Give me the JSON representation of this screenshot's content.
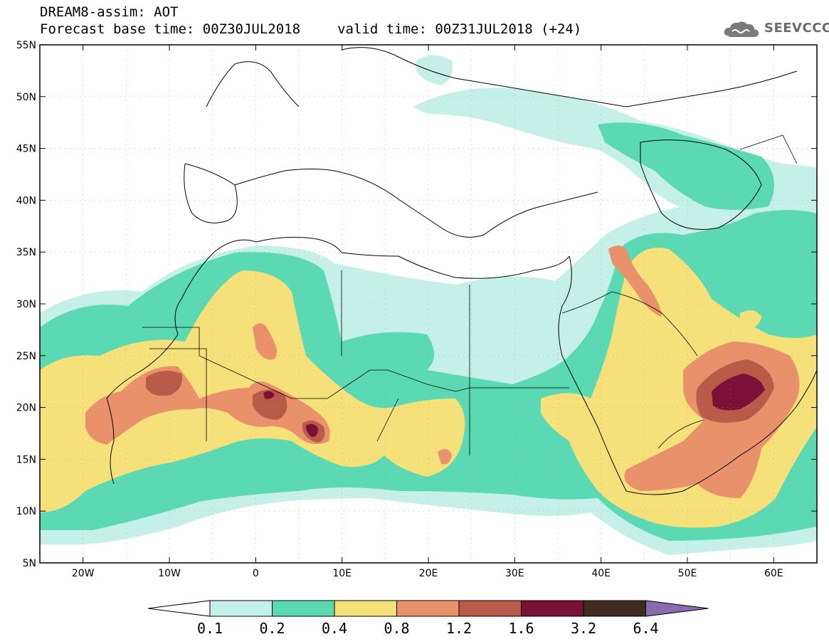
{
  "header": {
    "title": "DREAM8-assim: AOT",
    "base_label": "Forecast base time:",
    "base_time": "00Z30JUL2018",
    "valid_label": "valid time:",
    "valid_time": "00Z31JUL2018 (+24)"
  },
  "logo": {
    "text": "SEEVCCC",
    "icon": "cloud-icon"
  },
  "map": {
    "lon_range": [
      -25,
      65
    ],
    "lat_range": [
      5,
      55
    ],
    "lon_ticks": [
      "20W",
      "10W",
      "0",
      "10E",
      "20E",
      "30E",
      "40E",
      "50E",
      "60E"
    ],
    "lon_tick_values": [
      -20,
      -10,
      0,
      10,
      20,
      30,
      40,
      50,
      60
    ],
    "lat_ticks": [
      "55N",
      "50N",
      "45N",
      "40N",
      "35N",
      "30N",
      "25N",
      "20N",
      "15N",
      "10N",
      "5N"
    ],
    "lat_tick_values": [
      55,
      50,
      45,
      40,
      35,
      30,
      25,
      20,
      15,
      10,
      5
    ]
  },
  "colorbar": {
    "labels": [
      "0.1",
      "0.2",
      "0.4",
      "0.8",
      "1.2",
      "1.6",
      "3.2",
      "6.4"
    ],
    "colors": [
      "#c5f0e8",
      "#5ad9b2",
      "#f5e07a",
      "#e9916b",
      "#b85b48",
      "#7c1138",
      "#3f2b1f"
    ],
    "over_color": "#8c6ab0",
    "under_color": "#ffffff"
  }
}
